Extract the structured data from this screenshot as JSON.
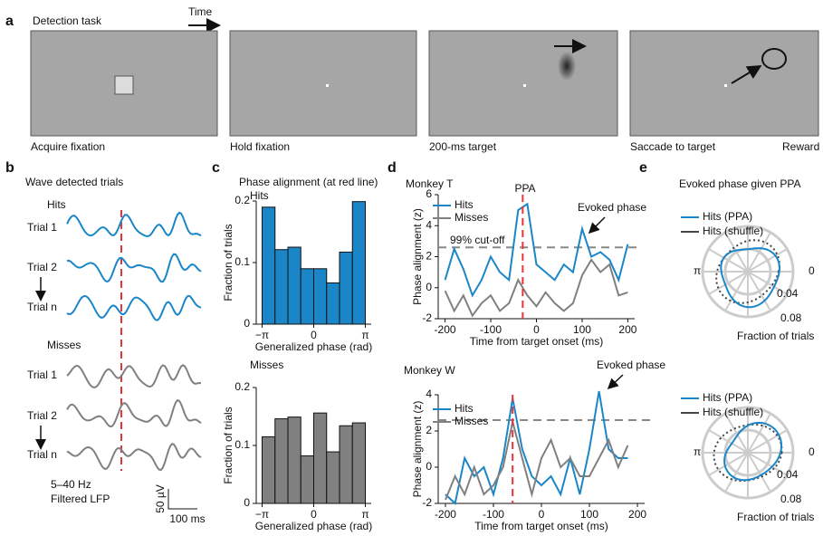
{
  "panel_a": {
    "letter": "a",
    "title": "Detection task",
    "time": "Time",
    "steps": [
      "Acquire fixation",
      "Hold fixation",
      "200-ms target",
      "Saccade to target",
      "Reward"
    ]
  },
  "panel_b": {
    "letter": "b",
    "title": "Wave detected trials",
    "hits": "Hits",
    "misses": "Misses",
    "hit_trials": [
      "Trial 1",
      "Trial 2",
      "Trial n"
    ],
    "miss_trials": [
      "Trial 1",
      "Trial 2",
      "Trial n"
    ],
    "filter": "5–40 Hz",
    "filter2": "Filtered LFP",
    "scale_v": "50 µV",
    "scale_t": "100 ms"
  },
  "panel_c": {
    "letter": "c"
  },
  "panel_d": {
    "letter": "d"
  },
  "panel_e": {
    "letter": "e",
    "title": "Evoked phase given PPA",
    "legend": [
      "Hits (PPA)",
      "Hits (shuffle)"
    ],
    "pi": "π",
    "zero": "0",
    "ring1": "0.04",
    "ring2": "0.08",
    "axis": "Fraction of trials"
  },
  "chart_data": [
    {
      "type": "histogram",
      "title": "Phase alignment (at red line)",
      "subtitle": "Hits",
      "color": "#1a86c8",
      "bins": [
        -3.1416,
        -2.3562,
        -1.5708,
        -0.7854,
        0,
        0.7854,
        1.5708,
        2.3562,
        3.1416
      ],
      "values": [
        0.19,
        0.121,
        0.125,
        0.09,
        0.09,
        0.067,
        0.117,
        0.199
      ],
      "xlim": [
        -3.5,
        3.5
      ],
      "ylim": [
        0,
        0.2
      ],
      "xticks": [
        {
          "value": -3.1416,
          "label": "−π"
        },
        0,
        {
          "value": 3.1416,
          "label": "π"
        }
      ],
      "yticks": [
        0,
        0.1,
        0.2
      ],
      "xlabel": "Generalized phase (rad)",
      "ylabel": "Fraction of trials"
    },
    {
      "type": "histogram",
      "subtitle": "Misses",
      "color": "#808080",
      "bins": [
        -3.1416,
        -2.3562,
        -1.5708,
        -0.7854,
        0,
        0.7854,
        1.5708,
        2.3562,
        3.1416
      ],
      "values": [
        0.115,
        0.146,
        0.149,
        0.082,
        0.156,
        0.089,
        0.134,
        0.139
      ],
      "xlim": [
        -3.5,
        3.5
      ],
      "ylim": [
        0,
        0.2
      ],
      "xticks": [
        {
          "value": -3.1416,
          "label": "−π"
        },
        0,
        {
          "value": 3.1416,
          "label": "π"
        }
      ],
      "yticks": [
        0,
        0.1,
        0.2
      ],
      "xlabel": "Generalized phase (rad)",
      "ylabel": "Fraction of trials"
    },
    {
      "type": "line",
      "title": "Monkey T",
      "x": [
        -200,
        -180,
        -160,
        -140,
        -120,
        -100,
        -80,
        -60,
        -40,
        -20,
        0,
        20,
        40,
        60,
        80,
        100,
        120,
        140,
        160,
        180,
        200
      ],
      "series": [
        {
          "name": "Hits",
          "color": "#1a86c8",
          "values": [
            0.5,
            2.5,
            1.2,
            -0.5,
            0.5,
            2.0,
            1.0,
            0.5,
            5.0,
            5.4,
            1.5,
            1.0,
            0.5,
            1.5,
            1.0,
            3.8,
            2.0,
            2.3,
            1.8,
            0.5,
            2.8
          ]
        },
        {
          "name": "Misses",
          "color": "#808080",
          "values": [
            -0.2,
            -1.5,
            -0.5,
            -1.8,
            -1.0,
            -0.5,
            -1.5,
            -1.0,
            0.5,
            -0.5,
            -1.2,
            -0.3,
            -1.0,
            -1.5,
            -1.0,
            0.8,
            1.8,
            1.0,
            1.5,
            -0.5,
            -0.3
          ]
        }
      ],
      "xlim": [
        -215,
        215
      ],
      "ylim": [
        -2,
        6
      ],
      "xticks": [
        -200,
        -100,
        0,
        100,
        200
      ],
      "yticks": [
        -2,
        0,
        2,
        4,
        6
      ],
      "xlabel": "Time from target onset (ms)",
      "ylabel": "Phase alignment (z)",
      "cutoff": 2.6,
      "cutoff_label": "99% cut-off",
      "marker_x": -30,
      "marker_label": "PPA",
      "evoked_label": "Evoked phase"
    },
    {
      "type": "line",
      "title": "Monkey W",
      "x": [
        -200,
        -180,
        -160,
        -140,
        -120,
        -100,
        -80,
        -60,
        -40,
        -20,
        0,
        20,
        40,
        60,
        80,
        100,
        120,
        140,
        160,
        180
      ],
      "series": [
        {
          "name": "Hits",
          "color": "#1a86c8",
          "values": [
            -1.5,
            -2.0,
            0.5,
            -0.5,
            0.0,
            -1.5,
            0.5,
            3.8,
            1.0,
            -0.5,
            -1.0,
            -0.5,
            -1.5,
            0.5,
            -1.5,
            1.0,
            4.2,
            1.0,
            0.5,
            0.5
          ]
        },
        {
          "name": "Misses",
          "color": "#808080",
          "values": [
            -1.8,
            -0.5,
            -1.5,
            0.0,
            -1.5,
            -1.0,
            0.0,
            2.5,
            0.5,
            -1.5,
            0.5,
            1.5,
            0.0,
            0.5,
            -0.5,
            -0.5,
            0.5,
            1.5,
            0.0,
            1.2
          ]
        }
      ],
      "xlim": [
        -215,
        215
      ],
      "ylim": [
        -2,
        4
      ],
      "xticks": [
        -200,
        -100,
        0,
        100,
        200
      ],
      "yticks": [
        -2,
        0,
        2,
        4
      ],
      "xlabel": "Time from target onset (ms)",
      "ylabel": "Phase alignment (z)",
      "cutoff": 2.6,
      "marker_x": -60,
      "evoked_label": "Evoked phase"
    }
  ]
}
